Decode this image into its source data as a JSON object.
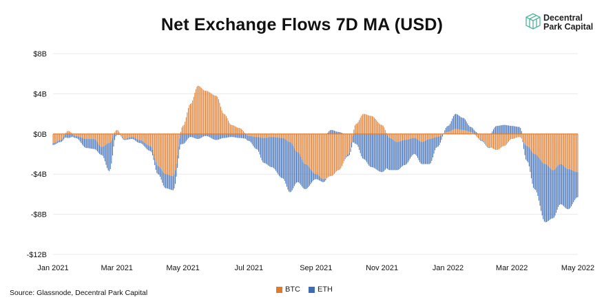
{
  "title": "Net Exchange Flows 7D MA (USD)",
  "logo": {
    "line1": "Decentral",
    "line2": "Park Capital"
  },
  "source": "Source: Glassnode, Decentral Park Capital",
  "colors": {
    "btc": "#e07b2c",
    "eth": "#3d6cb5",
    "zero_line": "#e07b2c",
    "grid": "#e8e8e8"
  },
  "chart_data": {
    "type": "bar",
    "stacked": true,
    "title": "Net Exchange Flows 7D MA (USD)",
    "ylim": [
      -12,
      8
    ],
    "yunit": "B USD",
    "yticks": [
      {
        "value": 8,
        "label": "$8B"
      },
      {
        "value": 4,
        "label": "$4B"
      },
      {
        "value": 0,
        "label": "$0B"
      },
      {
        "value": -4,
        "label": "-$4B"
      },
      {
        "value": -8,
        "label": "-$8B"
      },
      {
        "value": -12,
        "label": "-$12B"
      }
    ],
    "xticks": [
      {
        "date": "2021-01-01",
        "label": "Jan 2021"
      },
      {
        "date": "2021-03-01",
        "label": "Mar 2021"
      },
      {
        "date": "2021-05-01",
        "label": "May 2021"
      },
      {
        "date": "2021-07-01",
        "label": "Jul 2021"
      },
      {
        "date": "2021-09-01",
        "label": "Sep 2021"
      },
      {
        "date": "2021-11-01",
        "label": "Nov 2021"
      },
      {
        "date": "2022-01-01",
        "label": "Jan 2022"
      },
      {
        "date": "2022-03-01",
        "label": "Mar 2022"
      },
      {
        "date": "2022-05-01",
        "label": "May 2022"
      }
    ],
    "grid": "horizontal",
    "legend_position": "bottom-center",
    "series": [
      {
        "name": "BTC",
        "points": [
          [
            "2021-01-01",
            -0.9
          ],
          [
            "2021-01-08",
            -0.6
          ],
          [
            "2021-01-15",
            0.3
          ],
          [
            "2021-01-22",
            -0.2
          ],
          [
            "2021-02-01",
            -0.5
          ],
          [
            "2021-02-08",
            -0.5
          ],
          [
            "2021-02-15",
            -1.3
          ],
          [
            "2021-02-22",
            -0.9
          ],
          [
            "2021-03-01",
            0.4
          ],
          [
            "2021-03-08",
            -0.5
          ],
          [
            "2021-03-15",
            -0.3
          ],
          [
            "2021-03-22",
            -0.6
          ],
          [
            "2021-04-01",
            -1.2
          ],
          [
            "2021-04-08",
            -3.2
          ],
          [
            "2021-04-15",
            -4.0
          ],
          [
            "2021-04-22",
            -4.2
          ],
          [
            "2021-05-01",
            0.8
          ],
          [
            "2021-05-08",
            3.0
          ],
          [
            "2021-05-15",
            4.8
          ],
          [
            "2021-05-22",
            4.3
          ],
          [
            "2021-06-01",
            3.8
          ],
          [
            "2021-06-08",
            2.0
          ],
          [
            "2021-06-15",
            0.9
          ],
          [
            "2021-06-22",
            0.6
          ],
          [
            "2021-07-01",
            -0.2
          ],
          [
            "2021-07-08",
            -0.3
          ],
          [
            "2021-07-15",
            -0.4
          ],
          [
            "2021-07-22",
            -0.3
          ],
          [
            "2021-08-01",
            -0.4
          ],
          [
            "2021-08-08",
            -0.8
          ],
          [
            "2021-08-15",
            -1.8
          ],
          [
            "2021-08-22",
            -3.0
          ],
          [
            "2021-09-01",
            -4.0
          ],
          [
            "2021-09-08",
            -4.5
          ],
          [
            "2021-09-15",
            -4.2
          ],
          [
            "2021-09-22",
            -3.6
          ],
          [
            "2021-10-01",
            -2.0
          ],
          [
            "2021-10-08",
            1.0
          ],
          [
            "2021-10-15",
            2.0
          ],
          [
            "2021-10-22",
            1.8
          ],
          [
            "2021-11-01",
            0.9
          ],
          [
            "2021-11-08",
            -0.4
          ],
          [
            "2021-11-15",
            -0.8
          ],
          [
            "2021-11-22",
            -0.6
          ],
          [
            "2021-12-01",
            -0.4
          ],
          [
            "2021-12-08",
            -0.8
          ],
          [
            "2021-12-15",
            -0.5
          ],
          [
            "2021-12-22",
            -0.3
          ],
          [
            "2022-01-01",
            0.2
          ],
          [
            "2022-01-08",
            0.5
          ],
          [
            "2022-01-15",
            0.4
          ],
          [
            "2022-01-22",
            0.2
          ],
          [
            "2022-02-01",
            -0.6
          ],
          [
            "2022-02-08",
            -1.3
          ],
          [
            "2022-02-15",
            -1.6
          ],
          [
            "2022-02-22",
            -1.2
          ],
          [
            "2022-03-01",
            -0.5
          ],
          [
            "2022-03-08",
            -0.3
          ],
          [
            "2022-03-15",
            -1.2
          ],
          [
            "2022-03-22",
            -2.0
          ],
          [
            "2022-04-01",
            -3.0
          ],
          [
            "2022-04-08",
            -3.6
          ],
          [
            "2022-04-15",
            -3.0
          ],
          [
            "2022-04-22",
            -3.5
          ],
          [
            "2022-05-01",
            -3.8
          ]
        ]
      },
      {
        "name": "ETH",
        "points": [
          [
            "2021-01-01",
            -0.2
          ],
          [
            "2021-01-08",
            -0.2
          ],
          [
            "2021-01-15",
            -0.4
          ],
          [
            "2021-01-22",
            -0.2
          ],
          [
            "2021-02-01",
            -0.9
          ],
          [
            "2021-02-08",
            -1.0
          ],
          [
            "2021-02-15",
            -0.8
          ],
          [
            "2021-02-22",
            -2.8
          ],
          [
            "2021-03-01",
            -0.1
          ],
          [
            "2021-03-08",
            -0.1
          ],
          [
            "2021-03-15",
            -0.2
          ],
          [
            "2021-03-22",
            -0.3
          ],
          [
            "2021-04-01",
            -0.5
          ],
          [
            "2021-04-08",
            -0.8
          ],
          [
            "2021-04-15",
            -1.4
          ],
          [
            "2021-04-22",
            -1.4
          ],
          [
            "2021-05-01",
            -1.0
          ],
          [
            "2021-05-08",
            -0.3
          ],
          [
            "2021-05-15",
            -0.5
          ],
          [
            "2021-05-22",
            -0.2
          ],
          [
            "2021-06-01",
            -0.6
          ],
          [
            "2021-06-08",
            -0.4
          ],
          [
            "2021-06-15",
            -0.3
          ],
          [
            "2021-06-22",
            -0.4
          ],
          [
            "2021-07-01",
            -0.5
          ],
          [
            "2021-07-08",
            -1.2
          ],
          [
            "2021-07-15",
            -2.5
          ],
          [
            "2021-07-22",
            -3.0
          ],
          [
            "2021-08-01",
            -4.0
          ],
          [
            "2021-08-08",
            -5.0
          ],
          [
            "2021-08-15",
            -3.0
          ],
          [
            "2021-08-22",
            -2.5
          ],
          [
            "2021-09-01",
            -0.5
          ],
          [
            "2021-09-08",
            -0.3
          ],
          [
            "2021-09-15",
            0.4
          ],
          [
            "2021-09-22",
            0.2
          ],
          [
            "2021-10-01",
            -0.2
          ],
          [
            "2021-10-08",
            -1.0
          ],
          [
            "2021-10-15",
            -2.5
          ],
          [
            "2021-10-22",
            -3.3
          ],
          [
            "2021-11-01",
            -3.8
          ],
          [
            "2021-11-08",
            -3.2
          ],
          [
            "2021-11-15",
            -2.8
          ],
          [
            "2021-11-22",
            -2.5
          ],
          [
            "2021-12-01",
            -1.6
          ],
          [
            "2021-12-08",
            -2.2
          ],
          [
            "2021-12-15",
            -2.5
          ],
          [
            "2021-12-22",
            -1.0
          ],
          [
            "2022-01-01",
            0.6
          ],
          [
            "2022-01-08",
            1.5
          ],
          [
            "2022-01-15",
            1.2
          ],
          [
            "2022-01-22",
            0.5
          ],
          [
            "2022-02-01",
            -0.1
          ],
          [
            "2022-02-08",
            -0.1
          ],
          [
            "2022-02-15",
            0.8
          ],
          [
            "2022-02-22",
            0.9
          ],
          [
            "2022-03-01",
            0.8
          ],
          [
            "2022-03-08",
            0.7
          ],
          [
            "2022-03-15",
            -1.5
          ],
          [
            "2022-03-22",
            -3.5
          ],
          [
            "2022-04-01",
            -5.8
          ],
          [
            "2022-04-08",
            -4.8
          ],
          [
            "2022-04-15",
            -4.0
          ],
          [
            "2022-04-22",
            -4.0
          ],
          [
            "2022-05-01",
            -2.5
          ]
        ]
      }
    ]
  }
}
